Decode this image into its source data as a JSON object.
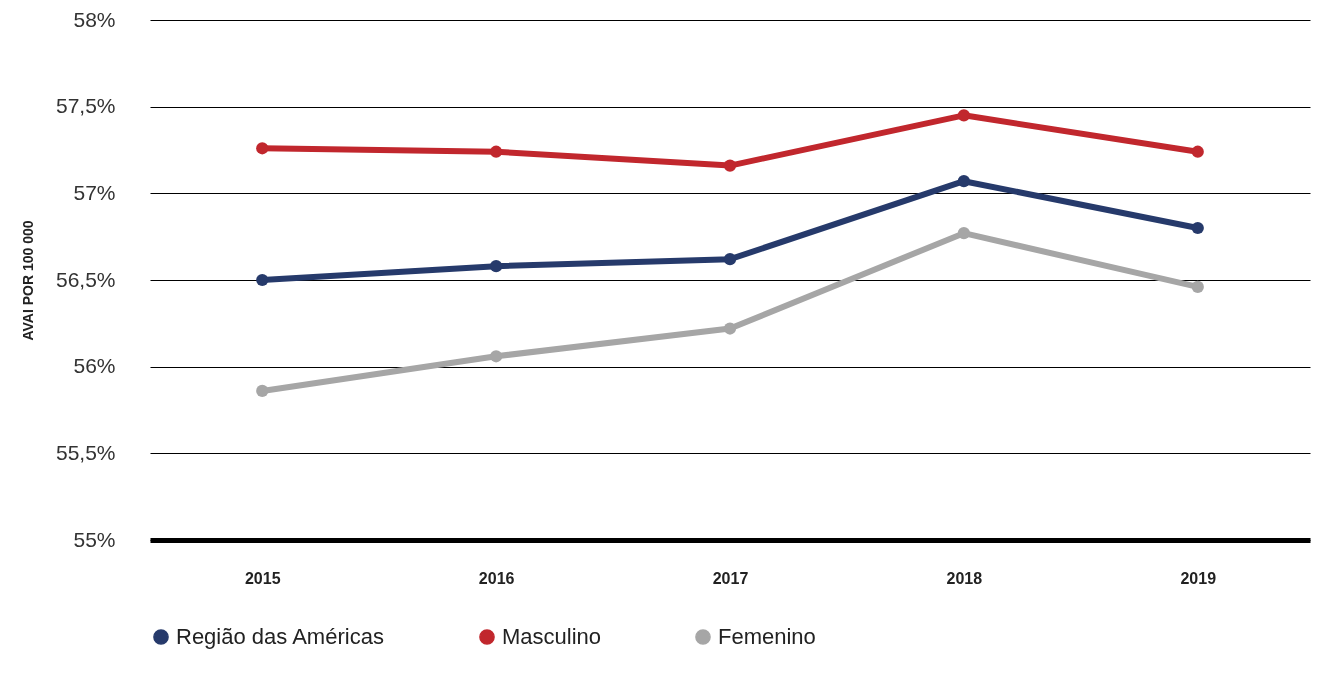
{
  "chart_data": {
    "type": "line",
    "ylabel": "AVAI POR 100 000",
    "categories": [
      "2015",
      "2016",
      "2017",
      "2018",
      "2019"
    ],
    "series": [
      {
        "name": "Região das Américas",
        "color": "#263a6b",
        "values": [
          56.5,
          56.58,
          56.62,
          57.07,
          56.8
        ]
      },
      {
        "name": "Masculino",
        "color": "#c1272d",
        "values": [
          57.26,
          57.24,
          57.16,
          57.45,
          57.24
        ]
      },
      {
        "name": "Femenino",
        "color": "#a6a6a6",
        "values": [
          55.86,
          56.06,
          56.22,
          56.77,
          56.46
        ]
      }
    ],
    "ylim": [
      55,
      58
    ],
    "yticks": [
      {
        "value": 55,
        "label": "55%"
      },
      {
        "value": 55.5,
        "label": "55,5%"
      },
      {
        "value": 56,
        "label": "56%"
      },
      {
        "value": 56.5,
        "label": "56,5%"
      },
      {
        "value": 57,
        "label": "57%"
      },
      {
        "value": 57.5,
        "label": "57,5%"
      },
      {
        "value": 58,
        "label": "58%"
      }
    ],
    "grid": "y",
    "legend": "bottom",
    "marker": "circle"
  }
}
